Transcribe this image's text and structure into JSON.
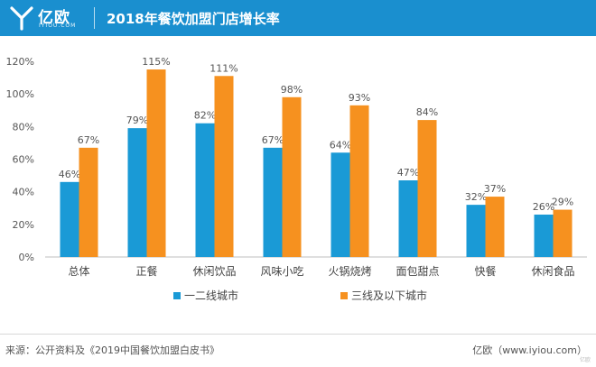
{
  "header": {
    "logo_text": "亿欧",
    "logo_sub": "IYIOU.COM",
    "title": "2018年餐饮加盟门店增长率",
    "color": "#1a8fcf"
  },
  "chart_data": {
    "type": "bar",
    "categories": [
      "总体",
      "正餐",
      "休闲饮品",
      "风味小吃",
      "火锅烧烤",
      "面包甜点",
      "快餐",
      "休闲食品"
    ],
    "series": [
      {
        "name": "一二线城市",
        "color": "#1a9ad6",
        "values": [
          46,
          79,
          82,
          67,
          64,
          47,
          32,
          26
        ]
      },
      {
        "name": "三线及以下城市",
        "color": "#f6911f",
        "values": [
          67,
          115,
          111,
          98,
          93,
          84,
          37,
          29
        ]
      }
    ],
    "ylim": [
      0,
      120
    ],
    "yticks": [
      "0%",
      "20%",
      "40%",
      "60%",
      "80%",
      "100%",
      "120%"
    ],
    "value_suffix": "%",
    "legend_position": "bottom",
    "grid": false
  },
  "footer": {
    "source": "来源：公开资料及《2019中国餐饮加盟白皮书》",
    "brand": "亿欧（www.iyiou.com）",
    "watermark": "亿欧"
  }
}
